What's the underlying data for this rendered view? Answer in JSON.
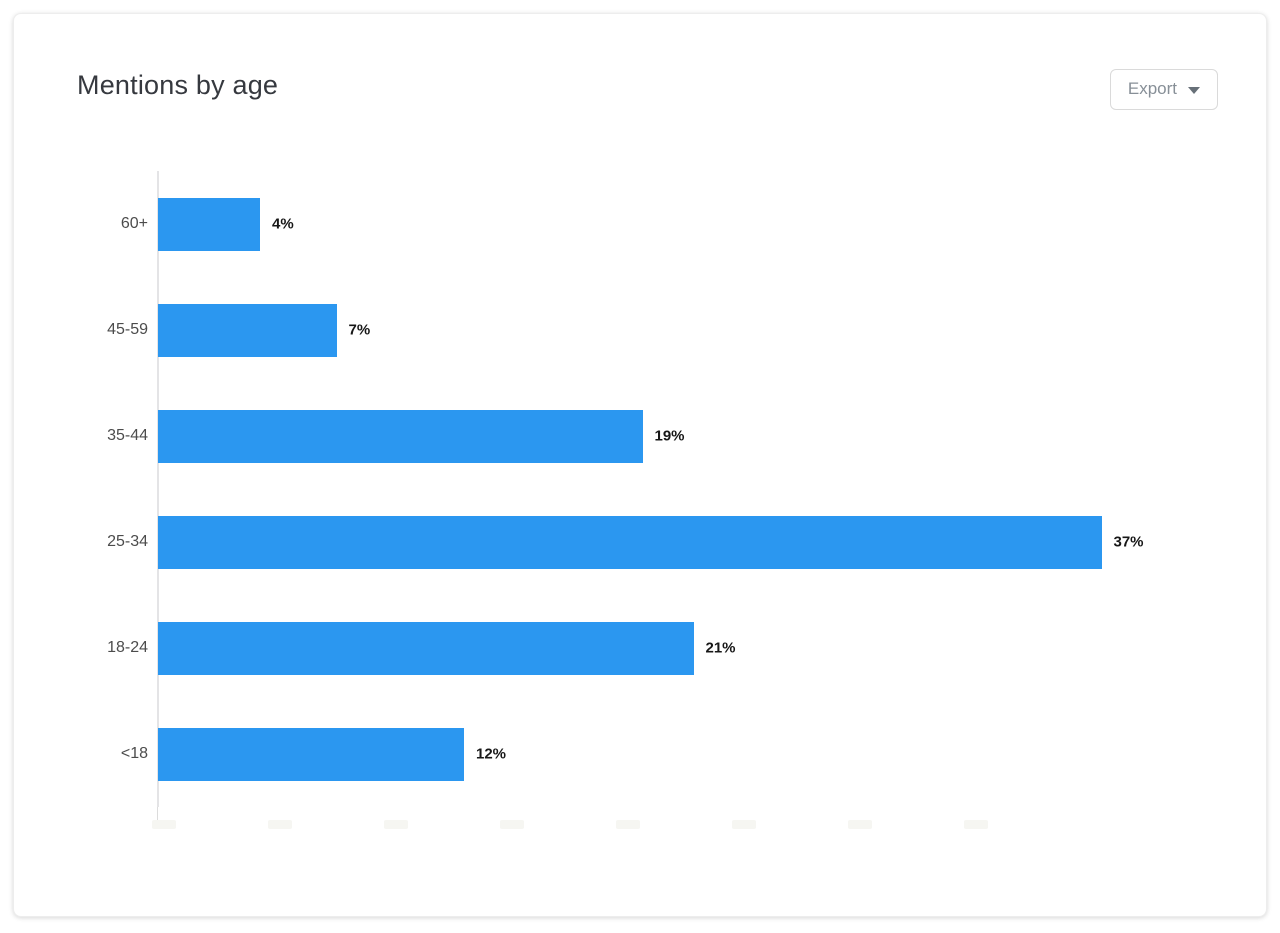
{
  "card": {
    "title": "Mentions by age",
    "export_button": {
      "label": "Export"
    }
  },
  "chart_data": {
    "type": "bar",
    "orientation": "horizontal",
    "title": "Mentions by age",
    "categories": [
      "60+",
      "45-59",
      "35-44",
      "25-34",
      "18-24",
      "<18"
    ],
    "values": [
      4,
      7,
      19,
      37,
      21,
      12
    ],
    "value_labels": [
      "4%",
      "7%",
      "19%",
      "37%",
      "21%",
      "12%"
    ],
    "xlabel": "",
    "ylabel": "",
    "xlim": [
      0,
      40
    ],
    "grid": false,
    "legend": false,
    "bar_color": "#2b97f0",
    "x_axis_tick_labels_visible": false
  }
}
